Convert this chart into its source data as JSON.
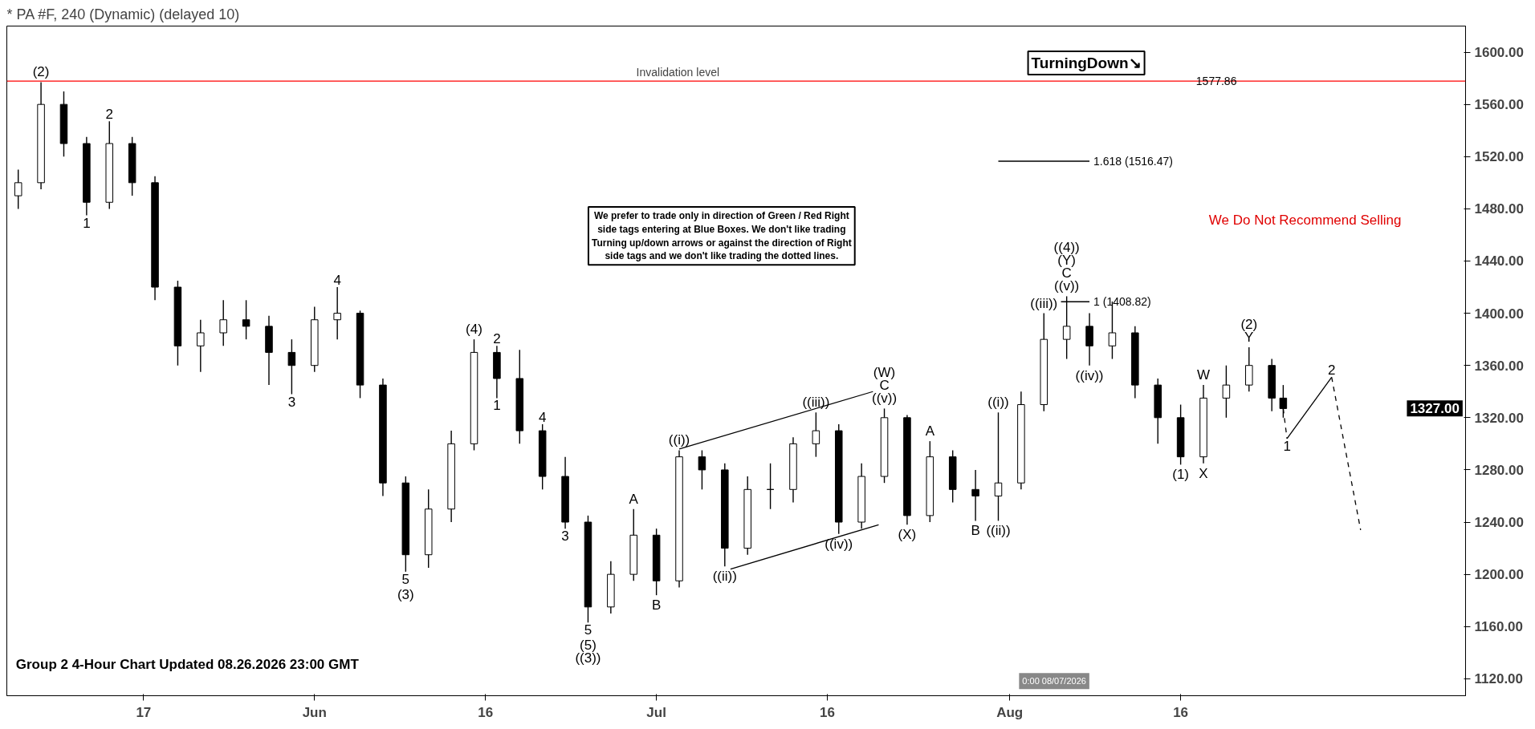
{
  "chart_data": {
    "type": "candlestick",
    "title": "* PA #F, 240 (Dynamic) (delayed 10)",
    "x": [
      "2026-05-06",
      "2026-05-08",
      "2026-05-10",
      "2026-05-12",
      "2026-05-14",
      "2026-05-16",
      "2026-05-18",
      "2026-05-20",
      "2026-05-22",
      "2026-05-24",
      "2026-05-26",
      "2026-05-28",
      "2026-05-30",
      "2026-06-01",
      "2026-06-03",
      "2026-06-05",
      "2026-06-07",
      "2026-06-09",
      "2026-06-11",
      "2026-06-13",
      "2026-06-15",
      "2026-06-17",
      "2026-06-19",
      "2026-06-21",
      "2026-06-23",
      "2026-06-25",
      "2026-06-27",
      "2026-06-29",
      "2026-07-01",
      "2026-07-03",
      "2026-07-05",
      "2026-07-07",
      "2026-07-09",
      "2026-07-11",
      "2026-07-13",
      "2026-07-15",
      "2026-07-17",
      "2026-07-19",
      "2026-07-21",
      "2026-07-23",
      "2026-07-25",
      "2026-07-27",
      "2026-07-29",
      "2026-07-31",
      "2026-08-02",
      "2026-08-04",
      "2026-08-06",
      "2026-08-08",
      "2026-08-10",
      "2026-08-12",
      "2026-08-14",
      "2026-08-16",
      "2026-08-18",
      "2026-08-20",
      "2026-08-22",
      "2026-08-24",
      "2026-08-25"
    ],
    "ohlc": [
      [
        1490,
        1510,
        1480,
        1500
      ],
      [
        1500,
        1577,
        1495,
        1560
      ],
      [
        1560,
        1570,
        1520,
        1530
      ],
      [
        1530,
        1535,
        1475,
        1485
      ],
      [
        1485,
        1547,
        1480,
        1530
      ],
      [
        1530,
        1535,
        1490,
        1500
      ],
      [
        1500,
        1505,
        1410,
        1420
      ],
      [
        1420,
        1425,
        1360,
        1375
      ],
      [
        1375,
        1395,
        1355,
        1385
      ],
      [
        1385,
        1410,
        1375,
        1395
      ],
      [
        1395,
        1410,
        1380,
        1390
      ],
      [
        1390,
        1398,
        1345,
        1370
      ],
      [
        1370,
        1380,
        1338,
        1360
      ],
      [
        1360,
        1405,
        1355,
        1395
      ],
      [
        1395,
        1420,
        1380,
        1400
      ],
      [
        1400,
        1402,
        1335,
        1345
      ],
      [
        1345,
        1350,
        1260,
        1270
      ],
      [
        1270,
        1275,
        1202,
        1215
      ],
      [
        1215,
        1265,
        1205,
        1250
      ],
      [
        1250,
        1310,
        1240,
        1300
      ],
      [
        1300,
        1380,
        1295,
        1370
      ],
      [
        1370,
        1375,
        1335,
        1350
      ],
      [
        1350,
        1372,
        1300,
        1310
      ],
      [
        1310,
        1315,
        1265,
        1275
      ],
      [
        1275,
        1290,
        1235,
        1240
      ],
      [
        1240,
        1245,
        1163,
        1175
      ],
      [
        1175,
        1210,
        1170,
        1200
      ],
      [
        1200,
        1250,
        1195,
        1230
      ],
      [
        1230,
        1235,
        1184,
        1195
      ],
      [
        1195,
        1295,
        1190,
        1290
      ],
      [
        1290,
        1295,
        1265,
        1280
      ],
      [
        1280,
        1285,
        1206,
        1220
      ],
      [
        1220,
        1275,
        1215,
        1265
      ],
      [
        1265,
        1285,
        1250,
        1265
      ],
      [
        1265,
        1305,
        1255,
        1300
      ],
      [
        1300,
        1324,
        1290,
        1310
      ],
      [
        1310,
        1315,
        1231,
        1240
      ],
      [
        1240,
        1285,
        1235,
        1275
      ],
      [
        1275,
        1327,
        1270,
        1320
      ],
      [
        1320,
        1322,
        1238,
        1245
      ],
      [
        1245,
        1302,
        1240,
        1290
      ],
      [
        1290,
        1295,
        1255,
        1265
      ],
      [
        1265,
        1280,
        1241,
        1260
      ],
      [
        1260,
        1324,
        1241,
        1270
      ],
      [
        1270,
        1340,
        1265,
        1330
      ],
      [
        1330,
        1400,
        1325,
        1380
      ],
      [
        1380,
        1413,
        1365,
        1390
      ],
      [
        1390,
        1400,
        1360,
        1375
      ],
      [
        1375,
        1409,
        1365,
        1385
      ],
      [
        1385,
        1390,
        1335,
        1345
      ],
      [
        1345,
        1350,
        1300,
        1320
      ],
      [
        1320,
        1330,
        1284,
        1290
      ],
      [
        1290,
        1345,
        1285,
        1335
      ],
      [
        1335,
        1360,
        1320,
        1345
      ],
      [
        1345,
        1374,
        1340,
        1360
      ],
      [
        1360,
        1365,
        1325,
        1335
      ],
      [
        1335,
        1345,
        1320,
        1327
      ]
    ],
    "color": "#000000",
    "xlim": [
      "2026-05-05",
      "2026-09-10"
    ],
    "ylim": [
      1107,
      1620
    ],
    "xticks": [
      {
        "value": "2026-05-17",
        "label": "17"
      },
      {
        "value": "2026-06-01",
        "label": "Jun"
      },
      {
        "value": "2026-06-16",
        "label": "16"
      },
      {
        "value": "2026-07-01",
        "label": "Jul"
      },
      {
        "value": "2026-07-16",
        "label": "16"
      },
      {
        "value": "2026-08-01",
        "label": "Aug"
      },
      {
        "value": "2026-08-16",
        "label": "16"
      }
    ],
    "yticks": [
      {
        "value": 1120,
        "label": "1120.00"
      },
      {
        "value": 1160,
        "label": "1160.00"
      },
      {
        "value": 1200,
        "label": "1200.00"
      },
      {
        "value": 1240,
        "label": "1240.00"
      },
      {
        "value": 1280,
        "label": "1280.00"
      },
      {
        "value": 1320,
        "label": "1320.00"
      },
      {
        "value": 1360,
        "label": "1360.00"
      },
      {
        "value": 1400,
        "label": "1400.00"
      },
      {
        "value": 1440,
        "label": "1440.00"
      },
      {
        "value": 1480,
        "label": "1480.00"
      },
      {
        "value": 1520,
        "label": "1520.00"
      },
      {
        "value": 1560,
        "label": "1560.00"
      },
      {
        "value": 1600,
        "label": "1600.00"
      }
    ],
    "series": [
      {
        "type": "line",
        "color": "#000000",
        "x": [
          "2026-07-03",
          "2026-07-20"
        ],
        "values": [
          1296,
          1340
        ]
      },
      {
        "type": "line",
        "color": "#000000",
        "x": [
          "2026-07-07T12:00",
          "2026-07-20T12:00"
        ],
        "values": [
          1204,
          1238
        ]
      },
      {
        "type": "line",
        "color": "#000000",
        "x": [
          "2026-07-31",
          "2026-08-08"
        ],
        "values": [
          1516.47,
          1516.47
        ]
      },
      {
        "type": "line",
        "color": "#000000",
        "x": [
          "2026-08-05T12:00",
          "2026-08-08"
        ],
        "values": [
          1408.82,
          1408.82
        ]
      },
      {
        "type": "line",
        "color": "#000000",
        "line_style": "dashed",
        "x": [
          "2026-08-25T00:00",
          "2026-08-25T08:00"
        ],
        "values": [
          1327,
          1304
        ]
      },
      {
        "type": "line",
        "color": "#000000",
        "x": [
          "2026-08-25T08:00",
          "2026-08-29T06:00"
        ],
        "values": [
          1304,
          1351
        ]
      },
      {
        "type": "line",
        "color": "#000000",
        "line_style": "dashed",
        "x": [
          "2026-08-29T06:00",
          "2026-08-31T19:00"
        ],
        "values": [
          1351,
          1234
        ]
      }
    ],
    "ref_lines": [
      {
        "axis": "y",
        "value": 1577.86,
        "label": "Invalidation level",
        "color": "#ff0000"
      }
    ],
    "annotations": [
      "We prefer to trade only in direction of Green / Red Right side tags entering at Blue Boxes. We don't like trading Turning up/down arrows or against the direction of Right side tags and we don't like trading the dotted lines.",
      "TurningDown↘",
      "We Do Not Recommend Selling",
      "Group 2 4-Hour Chart Updated 08.26.2026 23:00 GMT",
      "1327.00",
      "0:00 08/07/2026",
      {
        "text": "1577.86",
        "x": "2026-08-17",
        "y": 1577.86
      },
      {
        "text": "1.618 (1516.47)",
        "x": "2026-08-08",
        "y": 1516.47
      },
      {
        "text": "1 (1408.82)",
        "x": "2026-08-08",
        "y": 1408.82
      },
      {
        "text": "(2)",
        "x": "2026-05-08",
        "y": 1577
      },
      {
        "text": "2",
        "x": "2026-05-14",
        "y": 1547
      },
      {
        "text": "1",
        "x": "2026-05-12",
        "y": 1475
      },
      {
        "text": "4",
        "x": "2026-06-03",
        "y": 1420
      },
      {
        "text": "3",
        "x": "2026-05-30",
        "y": 1338
      },
      {
        "text": "(4)",
        "x": "2026-06-15",
        "y": 1380
      },
      {
        "text": "2",
        "x": "2026-06-17",
        "y": 1375
      },
      {
        "text": "1",
        "x": "2026-06-17",
        "y": 1335
      },
      {
        "text": "4",
        "x": "2026-06-21",
        "y": 1315
      },
      {
        "text": "3",
        "x": "2026-06-23",
        "y": 1235
      },
      {
        "text": "5",
        "x": "2026-06-09",
        "y": 1202
      },
      {
        "text": "(3)",
        "x": "2026-06-09",
        "y": 1202
      },
      {
        "text": "A",
        "x": "2026-06-29",
        "y": 1250
      },
      {
        "text": "B",
        "x": "2026-07-01",
        "y": 1184
      },
      {
        "text": "5",
        "x": "2026-06-25",
        "y": 1163
      },
      {
        "text": "(5)",
        "x": "2026-06-25",
        "y": 1163
      },
      {
        "text": "((3))",
        "x": "2026-06-25",
        "y": 1163
      },
      {
        "text": "((i))",
        "x": "2026-07-03",
        "y": 1295
      },
      {
        "text": "((ii))",
        "x": "2026-07-07",
        "y": 1206
      },
      {
        "text": "((iii))",
        "x": "2026-07-15",
        "y": 1324
      },
      {
        "text": "((iv))",
        "x": "2026-07-17",
        "y": 1231
      },
      {
        "text": "((v))",
        "x": "2026-07-21",
        "y": 1327
      },
      {
        "text": "C",
        "x": "2026-07-21",
        "y": 1327
      },
      {
        "text": "(W)",
        "x": "2026-07-21",
        "y": 1327
      },
      {
        "text": "(X)",
        "x": "2026-07-23",
        "y": 1238
      },
      {
        "text": "A",
        "x": "2026-07-25",
        "y": 1302
      },
      {
        "text": "B",
        "x": "2026-07-29",
        "y": 1241
      },
      {
        "text": "((i))",
        "x": "2026-07-31",
        "y": 1324
      },
      {
        "text": "((ii))",
        "x": "2026-07-31",
        "y": 1241
      },
      {
        "text": "((iii))",
        "x": "2026-08-04",
        "y": 1400
      },
      {
        "text": "((iv))",
        "x": "2026-08-08",
        "y": 1360
      },
      {
        "text": "((v))",
        "x": "2026-08-06",
        "y": 1413
      },
      {
        "text": "C",
        "x": "2026-08-06",
        "y": 1413
      },
      {
        "text": "(Y)",
        "x": "2026-08-06",
        "y": 1413
      },
      {
        "text": "((4))",
        "x": "2026-08-06",
        "y": 1413
      },
      {
        "text": "(1)",
        "x": "2026-08-16",
        "y": 1284
      },
      {
        "text": "W",
        "x": "2026-08-18",
        "y": 1345
      },
      {
        "text": "X",
        "x": "2026-08-18",
        "y": 1285
      },
      {
        "text": "Y",
        "x": "2026-08-22",
        "y": 1374
      },
      {
        "text": "(2)",
        "x": "2026-08-22",
        "y": 1374
      },
      {
        "text": "1",
        "x": "2026-08-25T08:00",
        "y": 1304
      },
      {
        "text": "2",
        "x": "2026-08-29T06:00",
        "y": 1351
      }
    ]
  }
}
